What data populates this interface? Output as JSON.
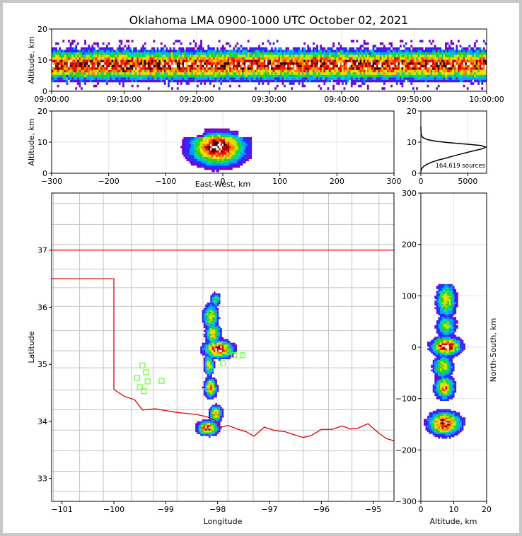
{
  "title": "Oklahoma LMA 0900-1000 UTC October 02, 2021",
  "chart_data": [
    {
      "type": "heatmap",
      "panel": "time-altitude",
      "xlabel": "",
      "ylabel": "Altitude, km",
      "xlim": [
        "09:00:00",
        "10:00:00"
      ],
      "ylim": [
        0,
        20
      ],
      "xticks": [
        "09:00:00",
        "09:10:00",
        "09:20:00",
        "09:30:00",
        "09:40:00",
        "09:50:00",
        "10:00:00"
      ],
      "yticks": [
        "0",
        "10",
        "20"
      ],
      "description_bands_km": [
        2,
        14
      ]
    },
    {
      "type": "heatmap",
      "panel": "east-west-altitude",
      "xlabel": "East-West, km",
      "ylabel": "Altitude, km",
      "xlim": [
        -300,
        300
      ],
      "ylim": [
        0,
        20
      ],
      "xticks": [
        "−300",
        "−200",
        "−100",
        "0",
        "100",
        "200",
        "300"
      ],
      "yticks": [
        "0",
        "10",
        "20"
      ]
    },
    {
      "type": "line",
      "panel": "altitude-histogram",
      "xlabel": "",
      "ylabel": "",
      "xlim": [
        0,
        7000
      ],
      "ylim": [
        0,
        20
      ],
      "xticks": [
        "0",
        "5000"
      ],
      "yticks": [
        "0",
        "10",
        "20"
      ],
      "annotation": "164,619 sources",
      "x": [
        0,
        100,
        300,
        600,
        1100,
        1800,
        2600,
        3400,
        4300,
        5200,
        5900,
        6600,
        6900,
        6400,
        5100,
        3400,
        1800,
        700,
        200,
        60,
        20,
        5,
        0
      ],
      "y": [
        0.5,
        1.5,
        2.2,
        2.8,
        3.5,
        4.2,
        4.8,
        5.5,
        6.2,
        6.9,
        7.4,
        7.9,
        8.4,
        8.9,
        9.3,
        9.7,
        10.2,
        10.8,
        11.5,
        12.2,
        13.0,
        14.0,
        15.0
      ]
    },
    {
      "type": "heatmap",
      "panel": "plan-view",
      "xlabel": "Longitude",
      "ylabel": "Latitude",
      "xlim": [
        -101.2,
        -94.6
      ],
      "ylim": [
        32.6,
        38.0
      ],
      "xticks": [
        "−101",
        "−100",
        "−99",
        "−98",
        "−97",
        "−96",
        "−95"
      ],
      "yticks": [
        "33",
        "34",
        "35",
        "36",
        "37"
      ],
      "stations": [
        [
          -99.45,
          34.98
        ],
        [
          -99.38,
          34.86
        ],
        [
          -99.55,
          34.76
        ],
        [
          -99.35,
          34.7
        ],
        [
          -99.5,
          34.6
        ],
        [
          -99.42,
          34.53
        ],
        [
          -99.08,
          34.71
        ],
        [
          -97.9,
          35.02
        ],
        [
          -97.68,
          35.16
        ],
        [
          -97.52,
          35.16
        ],
        [
          -97.8,
          35.22
        ]
      ]
    },
    {
      "type": "heatmap",
      "panel": "altitude-north-south",
      "xlabel": "Altitude, km",
      "ylabel": "North-South, km",
      "xlim": [
        0,
        20
      ],
      "ylim": [
        -300,
        300
      ],
      "xticks": [
        "0",
        "10",
        "20"
      ],
      "yticks": [
        "−300",
        "−200",
        "−100",
        "0",
        "100",
        "200",
        "300"
      ]
    }
  ]
}
